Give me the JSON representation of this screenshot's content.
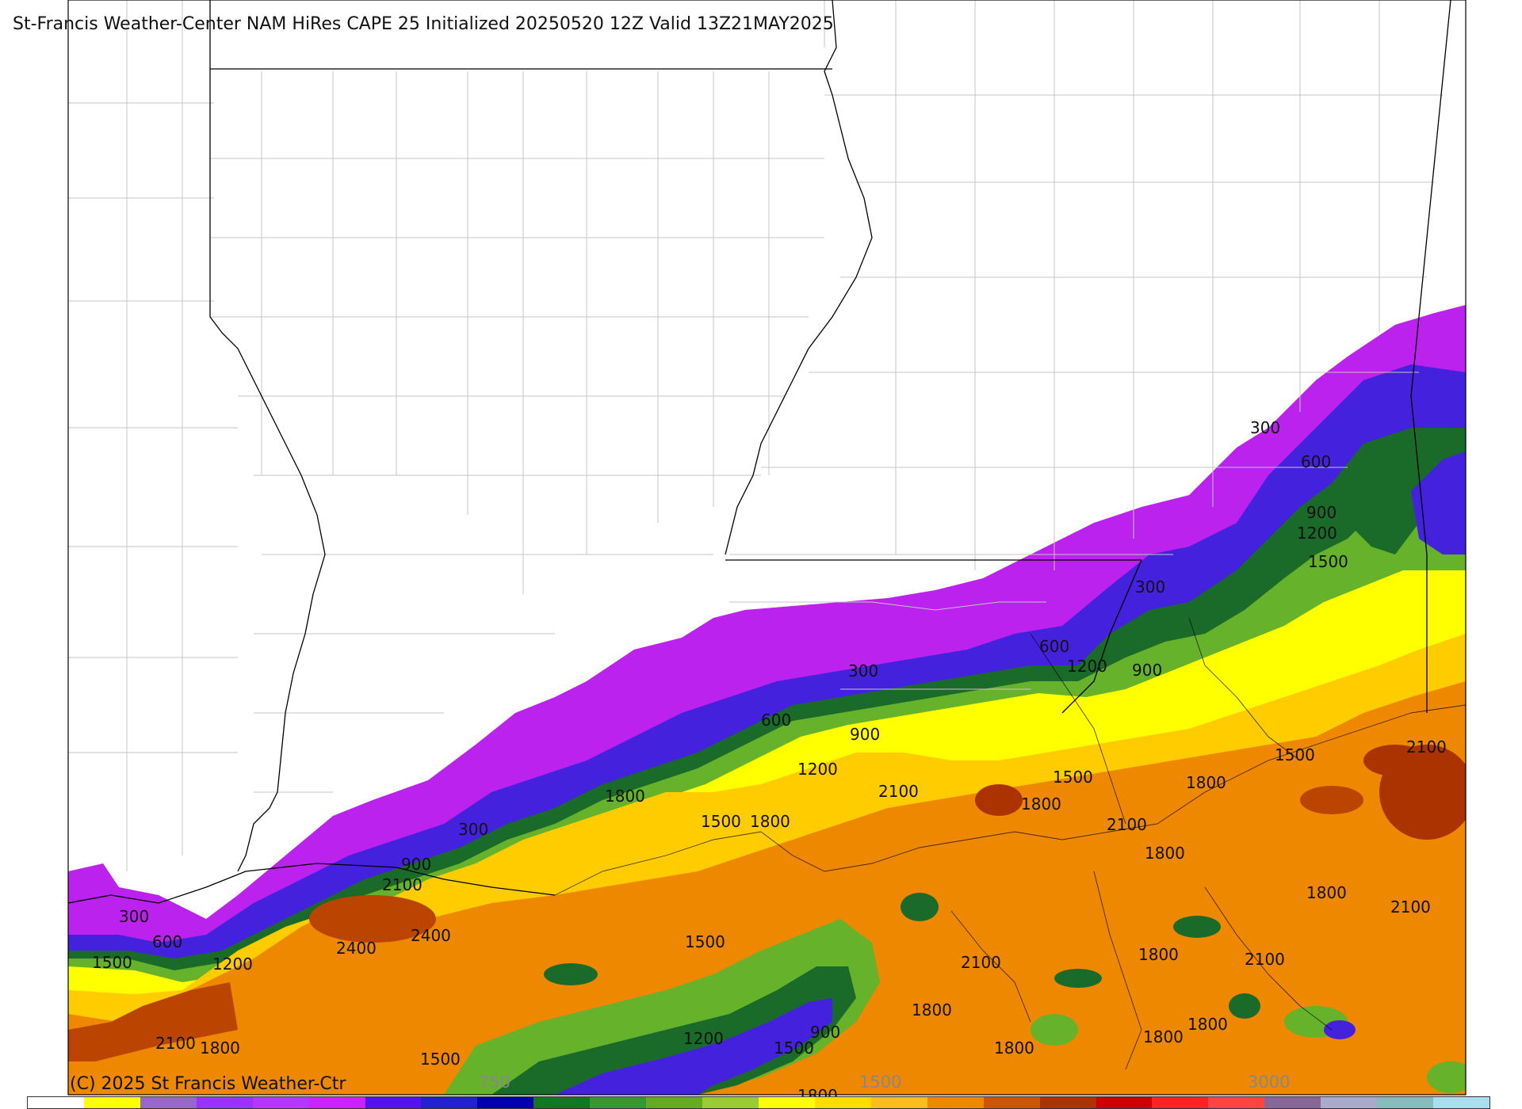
{
  "title": "St-Francis Weather-Center NAM HiRes CAPE  25 Initialized 20250520 12Z Valid 13Z21MAY2025",
  "copyright": "(C) 2025 St Francis Weather-Ctr",
  "colorbar": {
    "labels": [
      "750",
      "1500",
      "3000"
    ],
    "colors": [
      "#ffffff",
      "#ffff00",
      "#9966cc",
      "#9933ff",
      "#bb33ff",
      "#cc22ff",
      "#5511ee",
      "#2222cc",
      "#0000aa",
      "#117722",
      "#339933",
      "#66aa22",
      "#99cc33",
      "#ffff00",
      "#ffdd00",
      "#ffbb22",
      "#ee8800",
      "#cc5500",
      "#aa3300",
      "#cc0000",
      "#ff2222",
      "#ff4444",
      "#886699",
      "#aaaacc",
      "#88bbbb",
      "#aaddee"
    ]
  },
  "contour_labels": [
    "300",
    "600",
    "900",
    "1200",
    "1500",
    "1800",
    "2100",
    "2400"
  ],
  "legend_colors": {
    "boundary": "#000000",
    "county": "#bbbbbb",
    "cape_300": "#bb22ee",
    "cape_600": "#4422dd",
    "cape_900": "#1a6b2a",
    "cape_1200": "#66b22a",
    "cape_1500": "#ffff00",
    "cape_1800": "#ffcc00",
    "cape_2100": "#ee8800",
    "cape_2400": "#bb4400"
  }
}
